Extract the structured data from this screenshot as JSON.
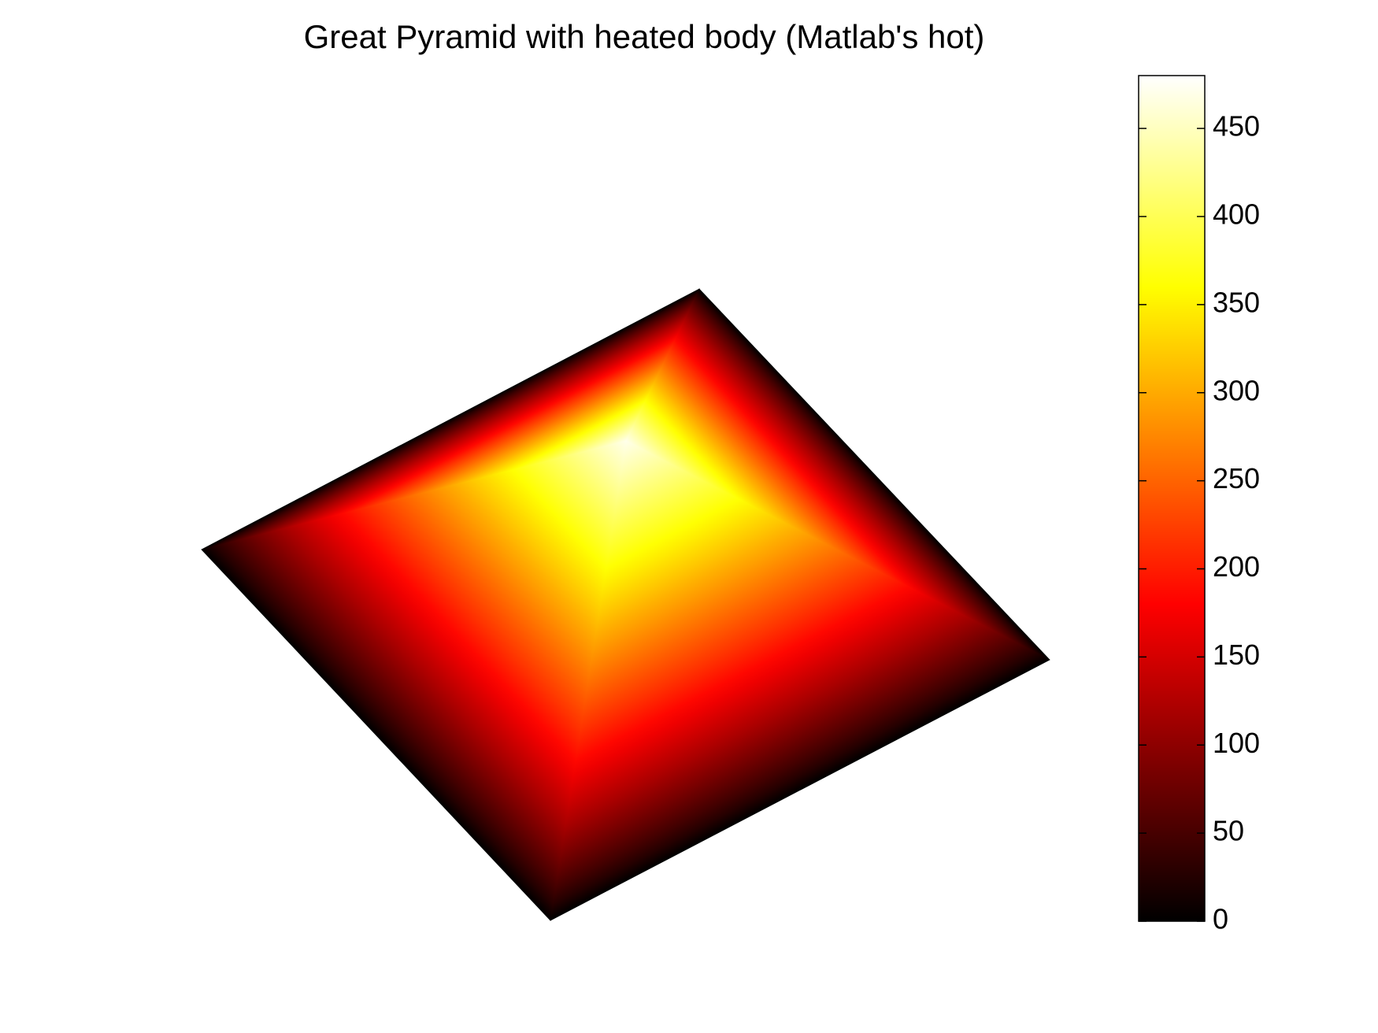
{
  "chart_data": {
    "type": "surface",
    "title": "Great Pyramid with heated body (Matlab's hot)",
    "colormap": "hot",
    "peak_value": 470,
    "base_value": 0,
    "clim": [
      0,
      480
    ],
    "cticks": [
      0,
      50,
      100,
      150,
      200,
      250,
      300,
      350,
      400,
      450
    ]
  }
}
